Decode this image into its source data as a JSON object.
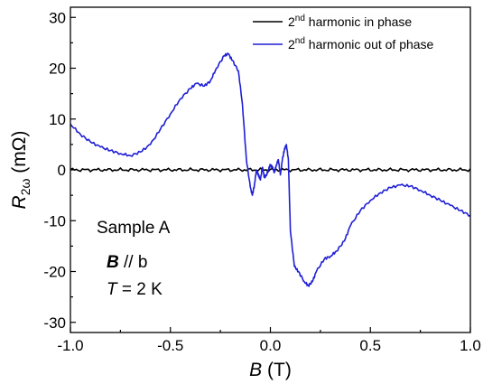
{
  "chart_data": {
    "type": "line",
    "xlabel": {
      "symbol": "B",
      "unit": "(T)"
    },
    "ylabel": {
      "symbol": "R",
      "subscript": "2ω",
      "unit": "(mΩ)"
    },
    "xlim": [
      -1.0,
      1.0
    ],
    "ylim": [
      -32,
      32
    ],
    "x_ticks": [
      -1.0,
      -0.5,
      0.0,
      0.5,
      1.0
    ],
    "x_tick_labels": [
      "-1.0",
      "-0.5",
      "0.0",
      "0.5",
      "1.0"
    ],
    "y_ticks": [
      -30,
      -20,
      -10,
      0,
      10,
      20,
      30
    ],
    "y_tick_labels": [
      "-30",
      "-20",
      "-10",
      "0",
      "10",
      "20",
      "30"
    ],
    "grid": false,
    "legend_position": "top-right",
    "series": [
      {
        "name": "2nd harmonic in phase",
        "name_parts": {
          "pre": "2",
          "sup": "nd",
          "post": " harmonic in phase"
        },
        "color": "#000000",
        "x": [
          -1.0,
          1.0
        ],
        "y": [
          0.0,
          0.0
        ]
      },
      {
        "name": "2nd harmonic out of phase",
        "name_parts": {
          "pre": "2",
          "sup": "nd",
          "post": " harmonic out of phase"
        },
        "color": "#1f1fd6",
        "x": [
          -1.0,
          -0.95,
          -0.9,
          -0.85,
          -0.8,
          -0.75,
          -0.7,
          -0.65,
          -0.6,
          -0.55,
          -0.5,
          -0.45,
          -0.4,
          -0.37,
          -0.33,
          -0.3,
          -0.27,
          -0.23,
          -0.21,
          -0.19,
          -0.16,
          -0.14,
          -0.12,
          -0.1,
          -0.09,
          -0.08,
          -0.07,
          -0.06,
          -0.05,
          -0.04,
          -0.03,
          -0.02,
          -0.01,
          0.0,
          0.01,
          0.02,
          0.03,
          0.04,
          0.05,
          0.06,
          0.07,
          0.08,
          0.09,
          0.1,
          0.12,
          0.14,
          0.17,
          0.19,
          0.21,
          0.23,
          0.27,
          0.3,
          0.33,
          0.37,
          0.4,
          0.45,
          0.5,
          0.55,
          0.6,
          0.65,
          0.7,
          0.75,
          0.8,
          0.85,
          0.9,
          0.95,
          1.0
        ],
        "y": [
          9,
          7,
          5.5,
          4.5,
          3.8,
          3.2,
          2.8,
          3.5,
          5,
          8,
          11,
          14,
          16,
          17,
          16.5,
          17.5,
          20,
          22.5,
          22.8,
          21.5,
          19.5,
          13,
          2,
          -3.5,
          -5,
          -3,
          0,
          -1,
          -2,
          0.5,
          -1.5,
          -1,
          0,
          1,
          0.5,
          -0.5,
          1,
          2,
          -1,
          2,
          4,
          5,
          2,
          -12,
          -19,
          -20,
          -22,
          -22.8,
          -22,
          -20,
          -17.5,
          -17,
          -16,
          -14,
          -11,
          -8,
          -6,
          -4.5,
          -3.5,
          -3,
          -3.2,
          -4,
          -5,
          -6,
          -7,
          -8,
          -9
        ]
      }
    ],
    "annotations": {
      "sample": "Sample A",
      "field_symbol": "B",
      "field_rest": " // b",
      "temp_symbol": "T",
      "temp_rest": " = 2 K"
    }
  }
}
